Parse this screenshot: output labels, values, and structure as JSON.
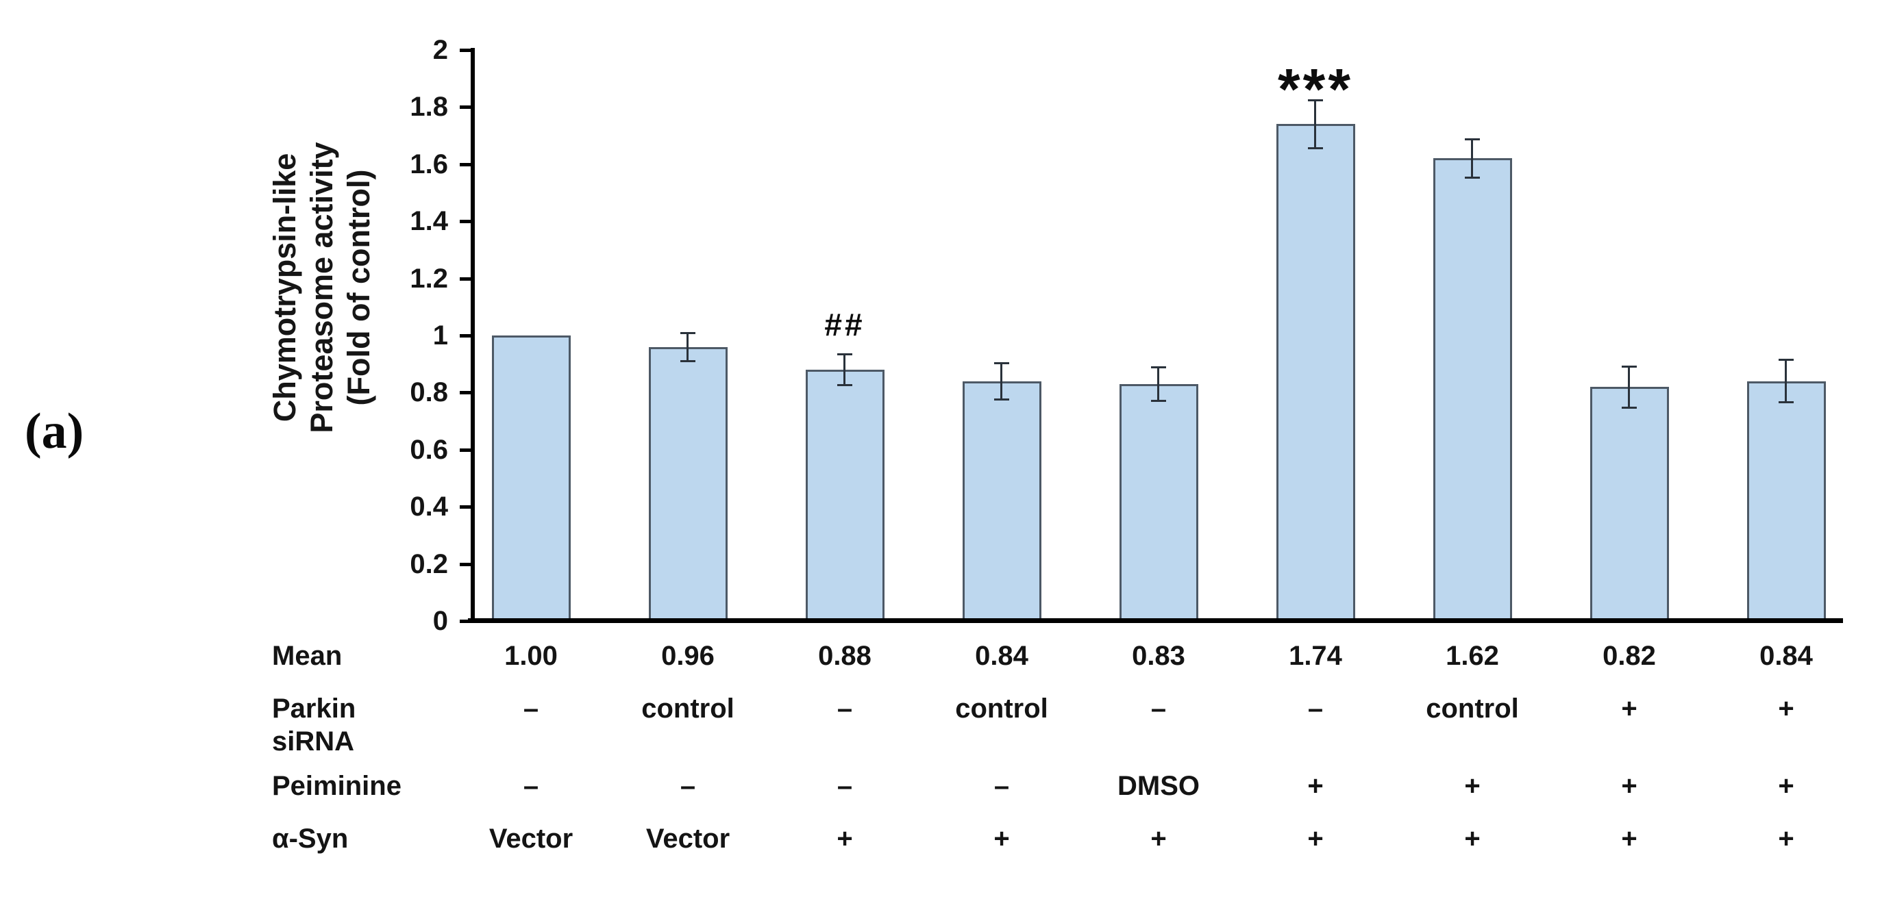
{
  "figure": {
    "panel_label": "(a)"
  },
  "chart_data": {
    "type": "bar",
    "title": "",
    "xlabel": "",
    "ylabel_lines": [
      "Chymotrypsin-like",
      "Proteasome activity",
      "(Fold of control)"
    ],
    "ylim": [
      0,
      2
    ],
    "grid": false,
    "legend": null,
    "ytick_values": [
      0,
      0.2,
      0.4,
      0.6,
      0.8,
      1,
      1.2,
      1.4,
      1.6,
      1.8,
      2
    ],
    "ytick_labels": [
      "0",
      "0.2",
      "0.4",
      "0.6",
      "0.8",
      "1",
      "1.2",
      "1.4",
      "1.6",
      "1.8",
      "2"
    ],
    "values": [
      1.0,
      0.96,
      0.88,
      0.84,
      0.83,
      1.74,
      1.62,
      0.82,
      0.84
    ],
    "errors": [
      null,
      0.05,
      0.055,
      0.065,
      0.06,
      0.085,
      0.068,
      0.073,
      0.075
    ],
    "annotations": [
      {
        "bar_index": 2,
        "text": "##"
      },
      {
        "bar_index": 5,
        "text": "***"
      }
    ],
    "colors": {
      "bar_fill": "#BDD7EE",
      "bar_border": "#4D5966",
      "error_bar": "#2A323B",
      "axis": "#000000"
    }
  },
  "table": {
    "rows": [
      {
        "label_lines": [
          "Mean"
        ],
        "values": [
          "1.00",
          "0.96",
          "0.88",
          "0.84",
          "0.83",
          "1.74",
          "1.62",
          "0.82",
          "0.84"
        ]
      },
      {
        "label_lines": [
          "Parkin",
          "siRNA"
        ],
        "values": [
          "–",
          "control",
          "–",
          "control",
          "–",
          "–",
          "control",
          "+",
          "+"
        ]
      },
      {
        "label_lines": [
          "Peiminine"
        ],
        "values": [
          "–",
          "–",
          "–",
          "–",
          "DMSO",
          "+",
          "+",
          "+",
          "+"
        ]
      },
      {
        "label_lines": [
          "α-Syn"
        ],
        "values": [
          "Vector",
          "Vector",
          "+",
          "+",
          "+",
          "+",
          "+",
          "+",
          "+"
        ]
      }
    ]
  }
}
